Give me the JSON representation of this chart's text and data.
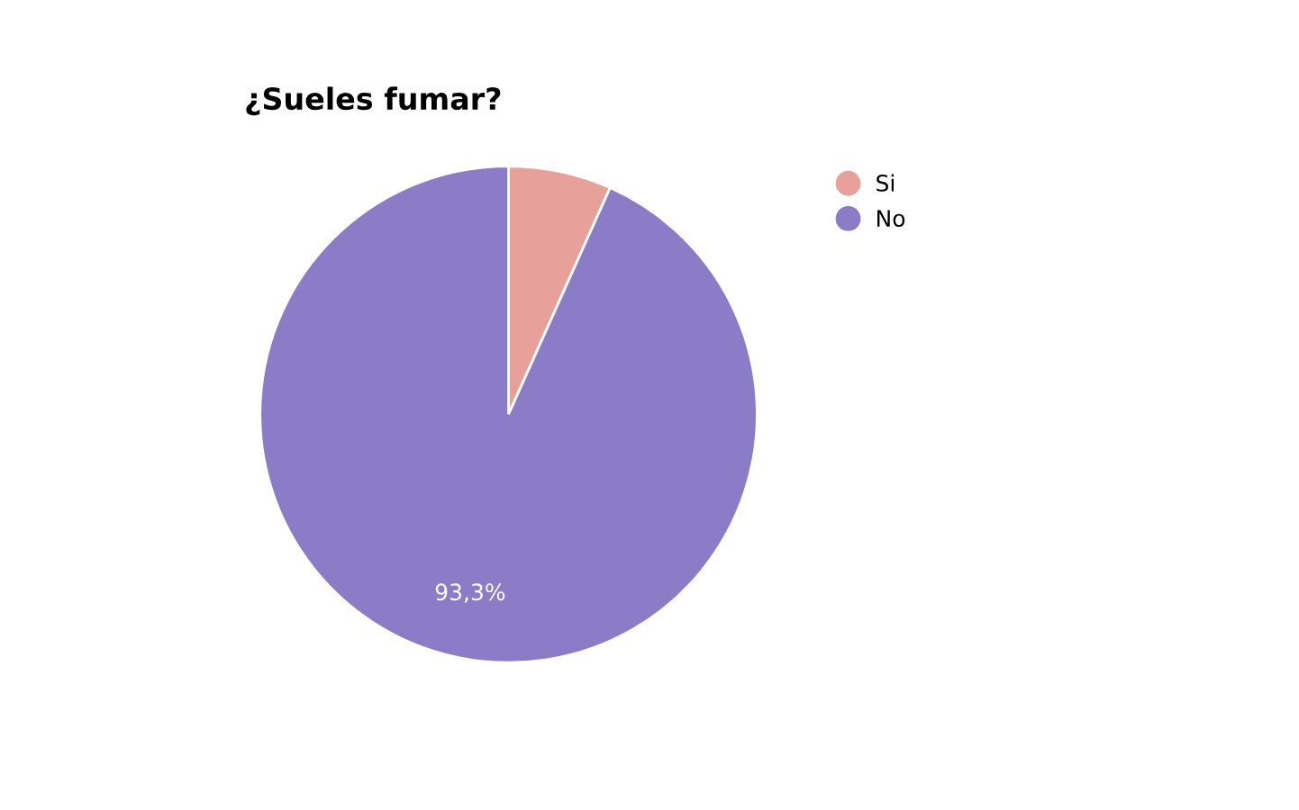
{
  "chart_data": {
    "type": "pie",
    "title": "¿Sueles fumar?",
    "categories": [
      "Si",
      "No"
    ],
    "values": [
      6.7,
      93.3
    ],
    "colors": [
      "#e8a09b",
      "#8b7cc8"
    ],
    "value_labels": [
      null,
      "93,3%"
    ],
    "legend": "top right"
  }
}
